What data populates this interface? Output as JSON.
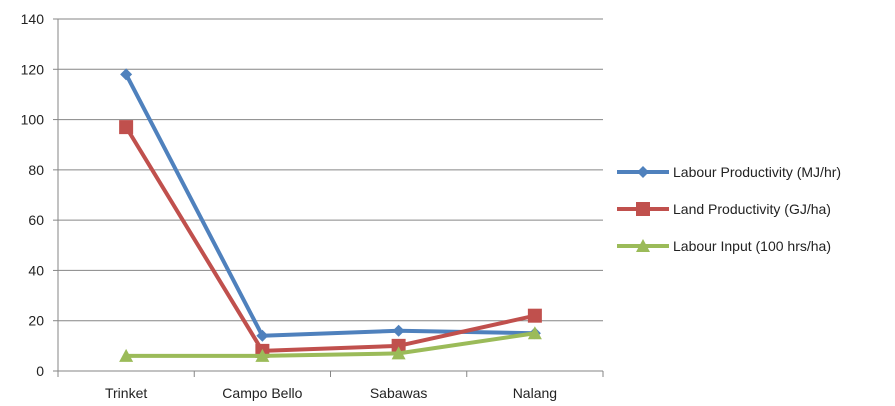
{
  "chart_data": {
    "type": "line",
    "title": "",
    "xlabel": "",
    "ylabel": "",
    "categories": [
      "Trinket",
      "Campo Bello",
      "Sabawas",
      "Nalang"
    ],
    "ylim": [
      0,
      140
    ],
    "yticks": [
      0,
      20,
      40,
      60,
      80,
      100,
      120,
      140
    ],
    "grid": true,
    "legend_position": "right",
    "series": [
      {
        "name": "Labour Productivity (MJ/hr)",
        "values": [
          118,
          14,
          16,
          15
        ],
        "color": "#4F81BD",
        "marker": "diamond"
      },
      {
        "name": "Land Productivity (GJ/ha)",
        "values": [
          97,
          8,
          10,
          22
        ],
        "color": "#C0504D",
        "marker": "square"
      },
      {
        "name": "Labour Input (100 hrs/ha)",
        "values": [
          6,
          6,
          7,
          15
        ],
        "color": "#9BBB59",
        "marker": "triangle"
      }
    ]
  }
}
